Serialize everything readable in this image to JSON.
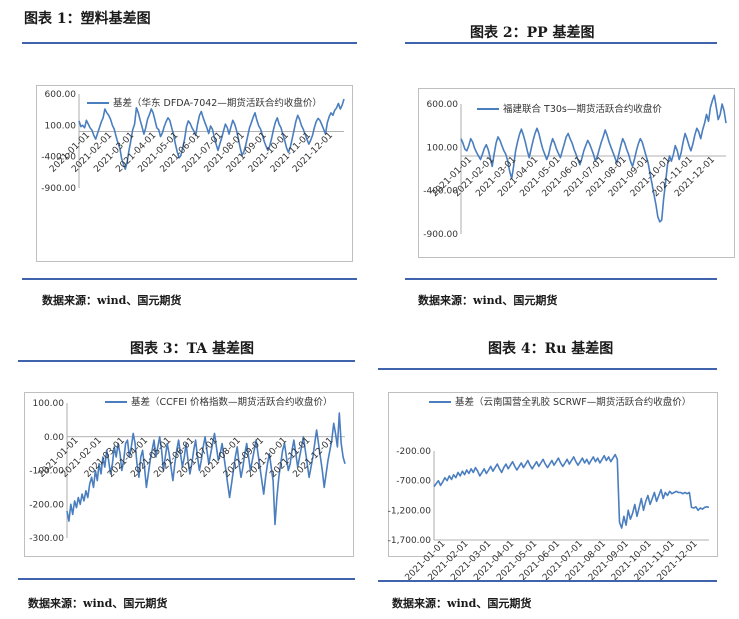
{
  "panels": [
    {
      "title": "图表 1：塑料基差图",
      "source": "数据来源：wind、国元期货",
      "accent": "#3f64ad",
      "chart_data": {
        "type": "line",
        "series": [
          {
            "name": "基差（华东 DFDA-7042—期货活跃合约收盘价）",
            "color": "#4a7ebf",
            "values": [
              170,
              80,
              100,
              60,
              180,
              120,
              60,
              20,
              -60,
              -120,
              -30,
              60,
              150,
              220,
              360,
              300,
              260,
              200,
              100,
              40,
              -80,
              -180,
              -260,
              -430,
              -520,
              -600,
              -480,
              -300,
              -140,
              30,
              120,
              380,
              300,
              180,
              80,
              -40,
              60,
              200,
              270,
              360,
              300,
              180,
              60,
              30,
              -80,
              -20,
              80,
              160,
              220,
              180,
              60,
              -40,
              -200,
              -320,
              -420,
              -380,
              -250,
              -120,
              80,
              170,
              130,
              60,
              10,
              -60,
              120,
              260,
              320,
              220,
              140,
              60,
              -30,
              90,
              40,
              -90,
              -200,
              -300,
              -200,
              -100,
              10,
              120,
              60,
              -40,
              80,
              180,
              120,
              20,
              -120,
              -260,
              -380,
              -320,
              -210,
              -80,
              60,
              140,
              230,
              300,
              180,
              90,
              40,
              -60,
              -160,
              -240,
              -300,
              -220,
              -100,
              40,
              150,
              220,
              120,
              60,
              -40,
              -140,
              -260,
              -330,
              -250,
              -120,
              20,
              160,
              260,
              200,
              100,
              40,
              -40,
              -120,
              -200,
              -140,
              -60,
              60,
              160,
              210,
              180,
              110,
              40,
              -40,
              140,
              240,
              300,
              260,
              340,
              380,
              450,
              360,
              420,
              520
            ]
          }
        ],
        "x_ticks": [
          "2021-01-01",
          "2021-02-01",
          "2021-03-01",
          "2021-04-01",
          "2021-05-01",
          "2021-06-01",
          "2021-07-01",
          "2021-08-01",
          "2021-09-01",
          "2021-10-01",
          "2021-11-01",
          "2021-12-01"
        ],
        "y_ticks": [
          "600.00",
          "100.00",
          "-400.00",
          "-900.00"
        ],
        "ylim": [
          -900,
          600
        ]
      }
    },
    {
      "title": "图表 2：PP 基差图",
      "source": "数据来源：wind、国元期货",
      "accent": "#3f64ad",
      "chart_data": {
        "type": "line",
        "series": [
          {
            "name": "福建联合 T30s—期货活跃合约收盘价",
            "color": "#4a7ebf",
            "values": [
              200,
              150,
              80,
              60,
              120,
              200,
              160,
              90,
              40,
              0,
              -40,
              20,
              90,
              130,
              70,
              -20,
              -120,
              20,
              150,
              220,
              180,
              120,
              60,
              20,
              -60,
              -180,
              -260,
              -120,
              60,
              160,
              250,
              310,
              240,
              160,
              60,
              -20,
              80,
              180,
              260,
              320,
              260,
              160,
              80,
              20,
              -40,
              20,
              120,
              200,
              150,
              80,
              30,
              -20,
              60,
              140,
              220,
              260,
              200,
              150,
              80,
              20,
              -40,
              -100,
              -30,
              60,
              120,
              180,
              140,
              80,
              20,
              -60,
              0,
              80,
              160,
              220,
              300,
              240,
              160,
              100,
              40,
              -20,
              -80,
              20,
              120,
              200,
              150,
              80,
              20,
              -60,
              -120,
              -40,
              60,
              140,
              200,
              160,
              80,
              0,
              -80,
              -200,
              -320,
              -440,
              -560,
              -700,
              -760,
              -740,
              -500,
              -300,
              -100,
              0,
              -60,
              20,
              120,
              60,
              -40,
              40,
              160,
              260,
              200,
              120,
              60,
              140,
              240,
              320,
              280,
              200,
              300,
              380,
              480,
              400,
              560,
              640,
              700,
              560,
              420,
              480,
              600,
              520,
              380
            ]
          }
        ],
        "x_ticks": [
          "2021-01-01",
          "2021-02-01",
          "2021-03-01",
          "2021-04-01",
          "2021-05-01",
          "2021-06-01",
          "2021-07-01",
          "2021-08-01",
          "2021-09-01",
          "2021-10-01",
          "2021-11-01",
          "2021-12-01"
        ],
        "y_ticks": [
          "600.00",
          "100.00",
          "-400.00",
          "-900.00"
        ],
        "ylim": [
          -900,
          600
        ]
      }
    },
    {
      "title": "图表 3：TA 基差图",
      "source": "数据来源：wind、国元期货",
      "accent": "#3f64ad",
      "chart_data": {
        "type": "line",
        "series": [
          {
            "name": "基差（CCFEI 价格指数—期货活跃合约收盘价）",
            "color": "#4a7ebf",
            "values": [
              -220,
              -250,
              -200,
              -230,
              -190,
              -210,
              -180,
              -200,
              -170,
              -190,
              -160,
              -180,
              -140,
              -120,
              -150,
              -100,
              -130,
              -80,
              -110,
              -60,
              -90,
              -40,
              -70,
              -110,
              -80,
              -30,
              -60,
              -20,
              -50,
              -100,
              -70,
              -20,
              -10,
              -60,
              -30,
              10,
              -20,
              -80,
              -120,
              -60,
              -40,
              -90,
              -150,
              -110,
              -70,
              -40,
              -10,
              -60,
              -30,
              0,
              -40,
              -100,
              -60,
              -20,
              -50,
              -90,
              -130,
              -80,
              -40,
              -10,
              -50,
              -90,
              -60,
              -20,
              -70,
              -110,
              -80,
              -40,
              -10,
              -60,
              -100,
              -70,
              -30,
              0,
              -40,
              -80,
              -50,
              -20,
              10,
              -30,
              -70,
              -50,
              -20,
              -60,
              -100,
              -140,
              -180,
              -140,
              -100,
              -60,
              -30,
              -80,
              -120,
              -90,
              -50,
              -20,
              -60,
              -100,
              -70,
              -40,
              -10,
              -50,
              -90,
              -130,
              -170,
              -120,
              -80,
              -50,
              -90,
              -130,
              -260,
              -180,
              -120,
              -80,
              -40,
              -20,
              -60,
              -100,
              -80,
              -40,
              -10,
              -50,
              -90,
              -60,
              -30,
              0,
              -40,
              -80,
              -120,
              -90,
              -60,
              -20,
              20,
              -20,
              -60,
              -100,
              -150,
              -110,
              -70,
              -40,
              -10,
              40,
              10,
              -30,
              70,
              -20,
              -60,
              -80
            ]
          }
        ],
        "x_ticks": [
          "2021-01-01",
          "2021-02-01",
          "2021-03-01",
          "2021-04-01",
          "2021-05-01",
          "2021-06-01",
          "2021-07-01",
          "2021-08-01",
          "2021-09-01",
          "2021-10-01",
          "2021-11-01",
          "2021-12-01"
        ],
        "y_ticks": [
          "100.00",
          "0.00",
          "-100.00",
          "-200.00",
          "-300.00"
        ],
        "ylim": [
          -300,
          100
        ]
      }
    },
    {
      "title": "图表 4：Ru 基差图",
      "source": "数据来源：wind、国元期货",
      "accent": "#3f64ad",
      "chart_data": {
        "type": "line",
        "series": [
          {
            "name": "基差（云南国营全乳胶 SCRWF—期货活跃合约收盘价）",
            "color": "#4a7ebf",
            "values": [
              -800,
              -750,
              -700,
              -780,
              -720,
              -650,
              -700,
              -620,
              -680,
              -600,
              -650,
              -560,
              -620,
              -540,
              -600,
              -520,
              -580,
              -500,
              -560,
              -480,
              -540,
              -620,
              -560,
              -500,
              -580,
              -520,
              -460,
              -540,
              -480,
              -420,
              -500,
              -560,
              -480,
              -420,
              -500,
              -440,
              -380,
              -460,
              -520,
              -460,
              -400,
              -480,
              -420,
              -360,
              -440,
              -500,
              -440,
              -380,
              -460,
              -400,
              -340,
              -420,
              -480,
              -420,
              -360,
              -440,
              -380,
              -320,
              -400,
              -460,
              -400,
              -340,
              -420,
              -360,
              -300,
              -380,
              -440,
              -380,
              -320,
              -400,
              -340,
              -420,
              -360,
              -300,
              -380,
              -320,
              -400,
              -340,
              -280,
              -360,
              -300,
              -380,
              -320,
              -260,
              -340,
              -1400,
              -1500,
              -1300,
              -1450,
              -1200,
              -1350,
              -1250,
              -1100,
              -1300,
              -1150,
              -1000,
              -1200,
              -1050,
              -950,
              -1100,
              -1000,
              -900,
              -1050,
              -950,
              -850,
              -1000,
              -900,
              -950,
              -880,
              -920,
              -900,
              -880,
              -900,
              -900,
              -920,
              -900,
              -920,
              -900,
              -1150,
              -1160,
              -1140,
              -1200,
              -1160,
              -1180,
              -1150,
              -1140,
              -1150
            ]
          }
        ],
        "x_ticks": [
          "2021-01-01",
          "2021-02-01",
          "2021-03-01",
          "2021-04-01",
          "2021-05-01",
          "2021-06-01",
          "2021-07-01",
          "2021-08-01",
          "2021-09-01",
          "2021-10-01",
          "2021-11-01",
          "2021-12-01"
        ],
        "y_ticks": [
          "-200.00",
          "-700.00",
          "-1,200.00",
          "-1,700.00"
        ],
        "ylim": [
          -1700,
          -200
        ]
      }
    }
  ]
}
